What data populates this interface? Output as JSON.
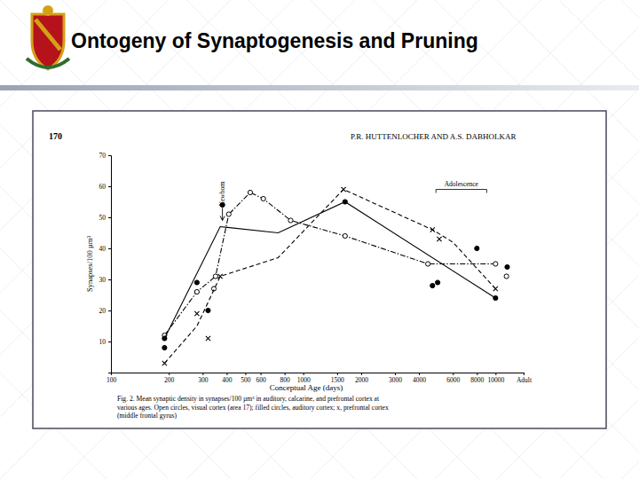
{
  "slide_title": "Ontogeny of Synaptogenesis and Pruning",
  "page_header": {
    "page": "170",
    "authors": "P.R. HUTTENLOCHER AND A.S. DABHOLKAR"
  },
  "caption": [
    "Fig. 2.   Mean synaptic density in synapses/100 µm³ in auditory, calcarine, and prefrontal cortex at",
    "various ages. Open circles, visual cortex (area 17); filled circles, auditory cortex; x, prefrontal cortex",
    "(middle frontal gyrus)"
  ],
  "chart_data": {
    "type": "line",
    "x_label": "Conceptual Age (days)",
    "y_label": "Synapses/100 µm³",
    "log": "x",
    "grid": false,
    "xlim": [
      100,
      14000
    ],
    "xticks": [
      100,
      200,
      300,
      400,
      500,
      600,
      800,
      1000,
      1500,
      2000,
      3000,
      4000,
      6000,
      8000,
      10000,
      {
        "value": 14000,
        "label": "Adult"
      }
    ],
    "ylim": [
      0,
      70
    ],
    "yticks": [
      10,
      20,
      30,
      40,
      50,
      60,
      70
    ],
    "series": [
      {
        "marker": "open-circle",
        "line_style": "dashdot",
        "color": "#000000",
        "x": [
          190,
          280,
          350,
          410,
          530,
          620,
          860,
          1650,
          4450,
          10000
        ],
        "values": [
          12,
          26,
          31,
          51,
          58,
          56,
          49,
          44,
          35,
          35
        ],
        "points_x": [
          190,
          280,
          343,
          350,
          410,
          530,
          620,
          860,
          1650,
          4450,
          10000,
          11400
        ],
        "points": [
          12,
          26,
          27,
          31,
          51,
          58,
          56,
          49,
          44,
          35,
          35,
          31
        ]
      },
      {
        "marker": "filled-circle",
        "line_style": "solid",
        "color": "#000000",
        "x": [
          190,
          370,
          740,
          1650,
          10000
        ],
        "values": [
          11,
          47,
          45,
          55,
          24
        ],
        "points_x": [
          190,
          190,
          280,
          320,
          380,
          1650,
          4700,
          5000,
          8000,
          10000,
          11500
        ],
        "points": [
          11,
          8,
          29,
          20,
          54,
          55,
          28,
          29,
          40,
          24,
          34
        ]
      },
      {
        "marker": "x",
        "line_style": "dashed",
        "color": "#000000",
        "x": [
          190,
          280,
          370,
          740,
          1620,
          4700,
          6000,
          10000
        ],
        "values": [
          3,
          15,
          31,
          37,
          59,
          46,
          42,
          27
        ],
        "points_x": [
          190,
          280,
          320,
          370,
          1620,
          4700,
          5100,
          10000
        ],
        "points": [
          3,
          19,
          11,
          31,
          59,
          46,
          43,
          27
        ]
      }
    ],
    "annotations": [
      {
        "text": "Newborn",
        "x": 380,
        "y": 49
      },
      {
        "text": "Adolescence",
        "x": [
          4900,
          9000
        ],
        "y": 59
      }
    ]
  }
}
